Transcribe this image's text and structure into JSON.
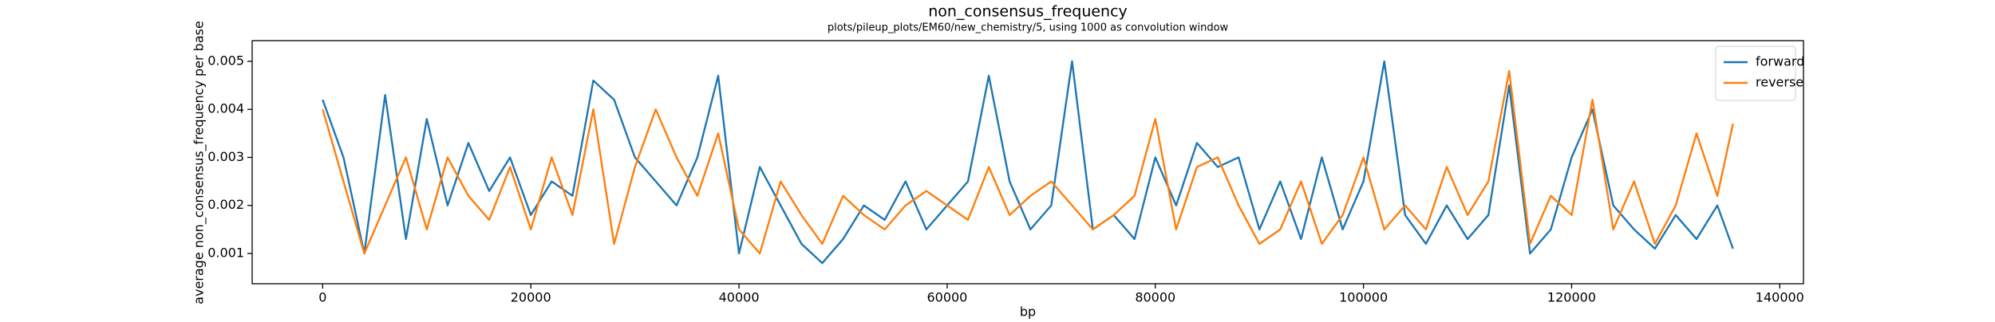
{
  "chart_data": {
    "type": "line",
    "title": "non_consensus_frequency",
    "subtitle": "plots/pileup_plots/EM60/new_chemistry/5, using 1000 as convolution window",
    "x_label": "bp",
    "y_label": "average non_consensus_frequency per base",
    "x": [
      0,
      2000,
      4000,
      6000,
      8000,
      10000,
      12000,
      14000,
      16000,
      18000,
      20000,
      22000,
      24000,
      26000,
      28000,
      30000,
      32000,
      34000,
      36000,
      38000,
      40000,
      42000,
      44000,
      46000,
      48000,
      50000,
      52000,
      54000,
      56000,
      58000,
      60000,
      62000,
      64000,
      66000,
      68000,
      70000,
      72000,
      74000,
      76000,
      78000,
      80000,
      82000,
      84000,
      86000,
      88000,
      90000,
      92000,
      94000,
      96000,
      98000,
      100000,
      102000,
      104000,
      106000,
      108000,
      110000,
      112000,
      114000,
      116000,
      118000,
      120000,
      122000,
      124000,
      126000,
      128000,
      130000,
      132000,
      134000,
      135500
    ],
    "series": [
      {
        "name": "forward",
        "color": "#1f77b4",
        "values": [
          0.0042,
          0.003,
          0.001,
          0.0043,
          0.0013,
          0.0038,
          0.002,
          0.0033,
          0.0023,
          0.003,
          0.0018,
          0.0025,
          0.0022,
          0.0046,
          0.0042,
          0.003,
          0.0025,
          0.002,
          0.003,
          0.0047,
          0.001,
          0.0028,
          0.002,
          0.0012,
          0.0008,
          0.0013,
          0.002,
          0.0017,
          0.0025,
          0.0015,
          0.002,
          0.0025,
          0.0047,
          0.0025,
          0.0015,
          0.002,
          0.005,
          0.0015,
          0.0018,
          0.0013,
          0.003,
          0.002,
          0.0033,
          0.0028,
          0.003,
          0.0015,
          0.0025,
          0.0013,
          0.003,
          0.0015,
          0.0025,
          0.005,
          0.0018,
          0.0012,
          0.002,
          0.0013,
          0.0018,
          0.0045,
          0.001,
          0.0015,
          0.003,
          0.004,
          0.002,
          0.0015,
          0.0011,
          0.0018,
          0.0013,
          0.002,
          0.0011
        ]
      },
      {
        "name": "reverse",
        "color": "#ff7f0e",
        "values": [
          0.004,
          0.0025,
          0.001,
          0.002,
          0.003,
          0.0015,
          0.003,
          0.0022,
          0.0017,
          0.0028,
          0.0015,
          0.003,
          0.0018,
          0.004,
          0.0012,
          0.0028,
          0.004,
          0.003,
          0.0022,
          0.0035,
          0.0015,
          0.001,
          0.0025,
          0.0018,
          0.0012,
          0.0022,
          0.0018,
          0.0015,
          0.002,
          0.0023,
          0.002,
          0.0017,
          0.0028,
          0.0018,
          0.0022,
          0.0025,
          0.002,
          0.0015,
          0.0018,
          0.0022,
          0.0038,
          0.0015,
          0.0028,
          0.003,
          0.002,
          0.0012,
          0.0015,
          0.0025,
          0.0012,
          0.0018,
          0.003,
          0.0015,
          0.002,
          0.0015,
          0.0028,
          0.0018,
          0.0025,
          0.0048,
          0.0012,
          0.0022,
          0.0018,
          0.0042,
          0.0015,
          0.0025,
          0.0012,
          0.002,
          0.0035,
          0.0022,
          0.0037
        ]
      }
    ],
    "xlim": [
      -6775,
      142275
    ],
    "ylim": [
      0.00037,
      0.00543
    ],
    "xticks": [
      0,
      20000,
      40000,
      60000,
      80000,
      100000,
      120000,
      140000
    ],
    "yticks": [
      0.001,
      0.002,
      0.003,
      0.004,
      0.005
    ],
    "legend": "upper right"
  }
}
